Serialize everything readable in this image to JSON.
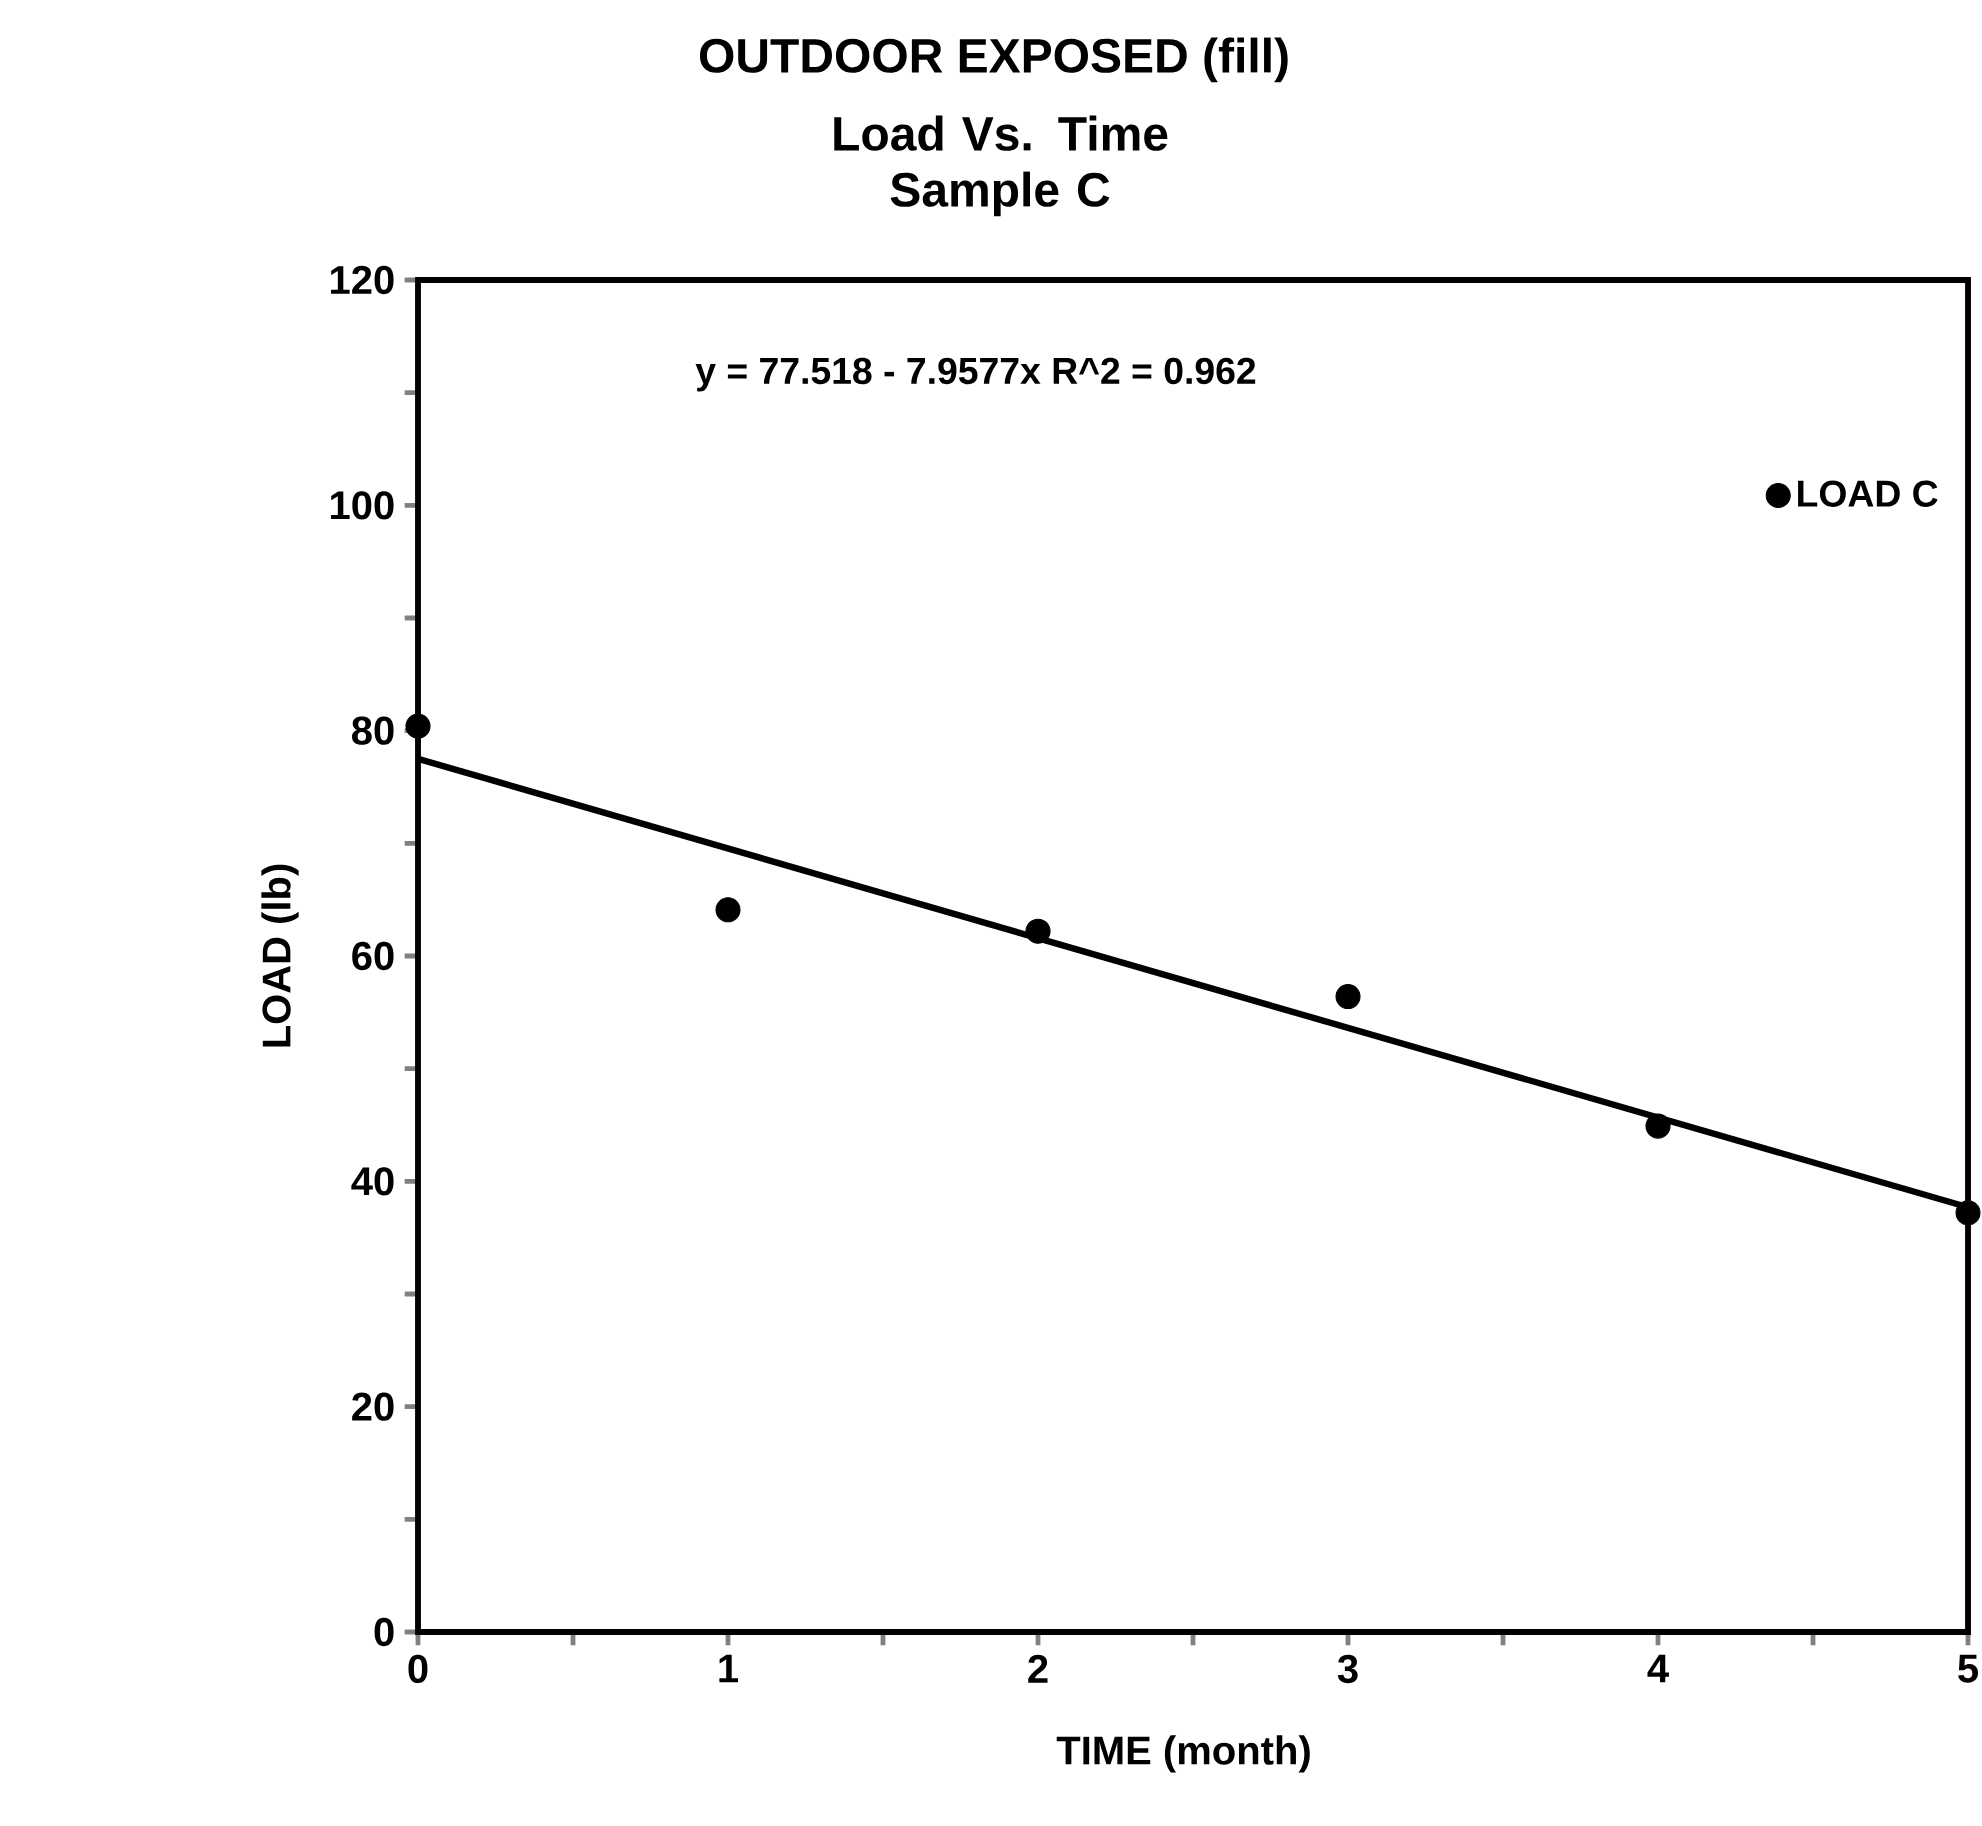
{
  "chart_data": {
    "type": "scatter",
    "title": "OUTDOOR EXPOSED (fill)",
    "subtitle": "Load Vs. Time\nSample C",
    "xlabel": "TIME (month)",
    "ylabel": "LOAD  (lb)",
    "annotations": [
      "y = 77.518 - 7.9577x   R^2 = 0.962"
    ],
    "x": [
      0,
      1,
      2,
      3,
      4,
      5
    ],
    "series": [
      {
        "name": "LOAD C",
        "color": "#000000",
        "marker": "circle",
        "values": [
          80.4,
          64.1,
          62.2,
          56.4,
          44.9,
          37.2
        ]
      },
      {
        "type": "line",
        "color": "#000000",
        "marker": "none",
        "x": [
          0,
          5
        ],
        "values": [
          77.5,
          37.7
        ]
      }
    ],
    "xlim": [
      0,
      5
    ],
    "ylim": [
      0,
      120
    ],
    "xticks": [
      0,
      {
        "value": 0.5,
        "label": null
      },
      1,
      {
        "value": 1.5,
        "label": null
      },
      2,
      {
        "value": 2.5,
        "label": null
      },
      3,
      {
        "value": 3.5,
        "label": null
      },
      4,
      {
        "value": 4.5,
        "label": null
      },
      5
    ],
    "yticks": [
      0,
      {
        "value": 10,
        "label": null
      },
      20,
      {
        "value": 30,
        "label": null
      },
      40,
      {
        "value": 50,
        "label": null
      },
      60,
      {
        "value": 70,
        "label": null
      },
      80,
      {
        "value": 90,
        "label": null
      },
      100,
      {
        "value": 110,
        "label": null
      },
      120
    ],
    "grid": false,
    "legend": "top right"
  }
}
